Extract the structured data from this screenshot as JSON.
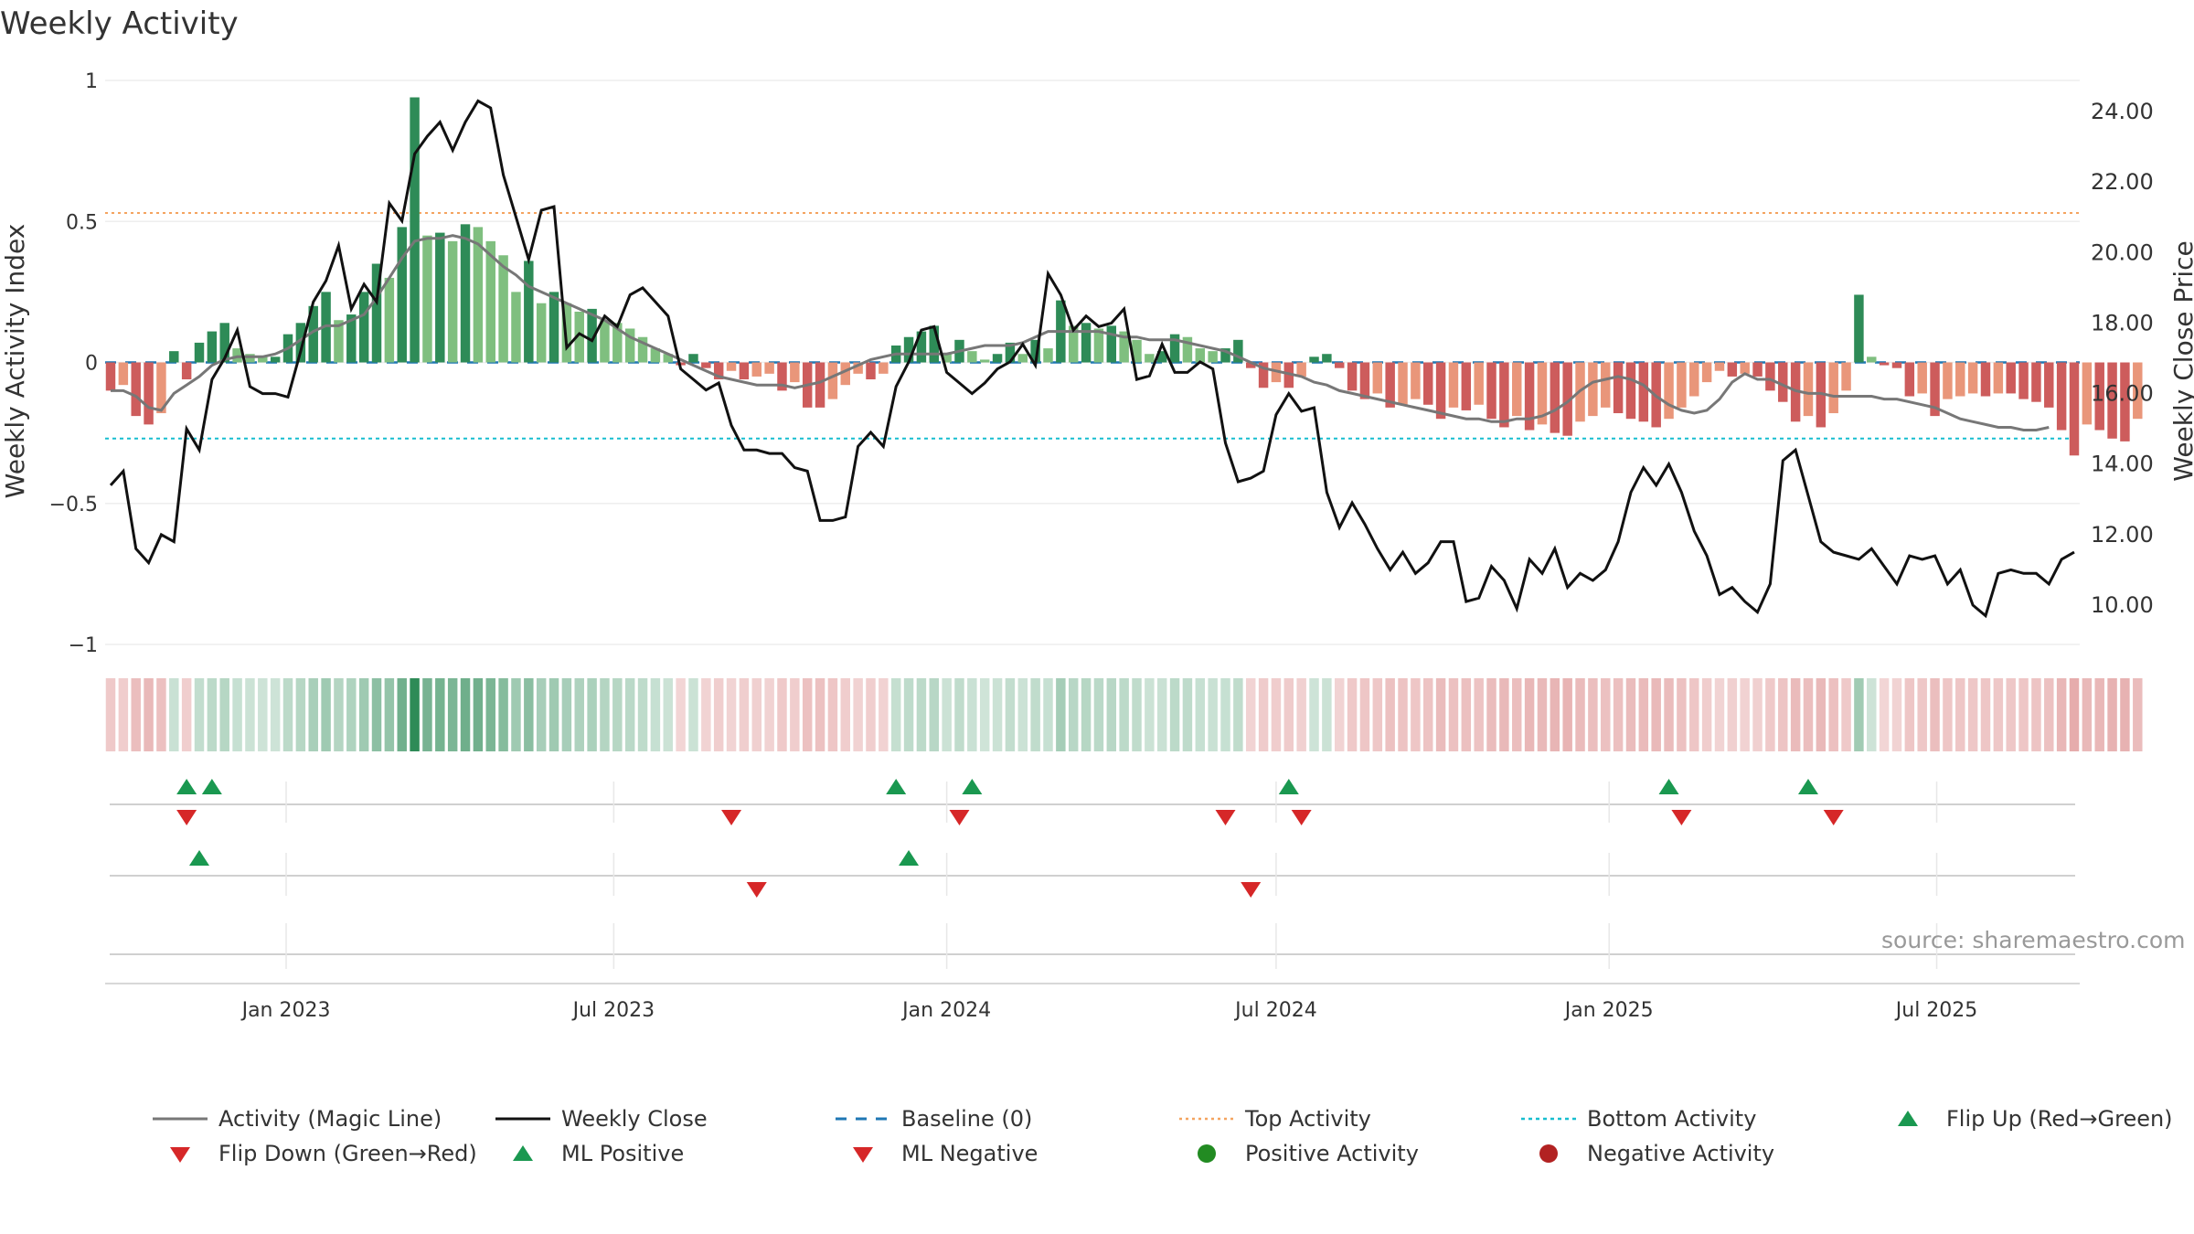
{
  "page_title": "Weekly Activity",
  "source_text": "source: sharemaestro.com",
  "colors": {
    "dark_green": "#2e8b57",
    "light_green": "#7fbf7f",
    "dark_red": "#cd5c5c",
    "light_red": "#e9967a",
    "magic_line": "#777777",
    "close_line": "#111111",
    "baseline": "#1f77b4",
    "top_activity": "#f4a460",
    "bottom_activity": "#17becf",
    "flip_up": "#1a9850",
    "flip_down": "#d62728"
  },
  "legend": [
    {
      "label": "Activity (Magic Line)",
      "icon": "solid-gray-line"
    },
    {
      "label": "Weekly Close",
      "icon": "solid-black-line"
    },
    {
      "label": "Baseline (0)",
      "icon": "dashed-blue-line"
    },
    {
      "label": "Top Activity",
      "icon": "dotted-orange-line"
    },
    {
      "label": "Bottom Activity",
      "icon": "dotted-cyan-line"
    },
    {
      "label": "Flip Up (Red→Green)",
      "icon": "green-triangle-up"
    },
    {
      "label": "Flip Down (Green→Red)",
      "icon": "red-triangle-down"
    },
    {
      "label": "ML Positive",
      "icon": "green-triangle-up"
    },
    {
      "label": "ML Negative",
      "icon": "red-triangle-down"
    },
    {
      "label": "Positive Activity",
      "icon": "green-dot"
    },
    {
      "label": "Negative Activity",
      "icon": "red-dot"
    }
  ],
  "chart_data": {
    "type": "bar",
    "title": "Weekly Activity",
    "ylabel": "Weekly Activity Index",
    "y2label": "Weekly Close Price",
    "ylim": [
      -1,
      1
    ],
    "y2lim": [
      9.0,
      25.0
    ],
    "yticks": [
      "1",
      "0.5",
      "0",
      "−0.5",
      "−1"
    ],
    "y2ticks": [
      "24.00",
      "22.00",
      "20.00",
      "18.00",
      "16.00",
      "14.00",
      "12.00",
      "10.00"
    ],
    "date_range": [
      "2022-09-26",
      "2025-09-15"
    ],
    "x_ticks": [
      {
        "label": "Jan 2023",
        "date": "2023-01-01"
      },
      {
        "label": "Jul 2023",
        "date": "2023-07-01"
      },
      {
        "label": "Jan 2024",
        "date": "2024-01-01"
      },
      {
        "label": "Jul 2024",
        "date": "2024-07-01"
      },
      {
        "label": "Jan 2025",
        "date": "2025-01-01"
      },
      {
        "label": "Jul 2025",
        "date": "2025-07-01"
      }
    ],
    "top_activity": 0.53,
    "bottom_activity": -0.27,
    "baseline": 0,
    "activity": [
      -0.1,
      -0.08,
      -0.19,
      -0.22,
      -0.18,
      0.04,
      -0.06,
      0.07,
      0.11,
      0.14,
      0.05,
      0.03,
      0.02,
      0.02,
      0.1,
      0.14,
      0.2,
      0.25,
      0.15,
      0.17,
      0.25,
      0.35,
      0.3,
      0.48,
      0.94,
      0.45,
      0.46,
      0.43,
      0.49,
      0.48,
      0.43,
      0.38,
      0.25,
      0.36,
      0.21,
      0.25,
      0.21,
      0.18,
      0.19,
      0.15,
      0.14,
      0.12,
      0.09,
      0.05,
      0.03,
      -0.01,
      0.03,
      -0.02,
      -0.06,
      -0.03,
      -0.06,
      -0.05,
      -0.04,
      -0.1,
      -0.07,
      -0.16,
      -0.16,
      -0.13,
      -0.08,
      -0.04,
      -0.06,
      -0.04,
      0.06,
      0.09,
      0.11,
      0.13,
      0.03,
      0.08,
      0.04,
      0.01,
      0.03,
      0.07,
      0.03,
      0.08,
      0.05,
      0.22,
      0.13,
      0.14,
      0.12,
      0.13,
      0.11,
      0.08,
      0.03,
      0.04,
      0.1,
      0.09,
      0.05,
      0.04,
      0.05,
      0.08,
      -0.02,
      -0.09,
      -0.07,
      -0.09,
      -0.05,
      0.02,
      0.03,
      -0.02,
      -0.1,
      -0.13,
      -0.11,
      -0.16,
      -0.15,
      -0.13,
      -0.15,
      -0.2,
      -0.16,
      -0.17,
      -0.15,
      -0.2,
      -0.23,
      -0.19,
      -0.24,
      -0.22,
      -0.25,
      -0.26,
      -0.21,
      -0.19,
      -0.16,
      -0.18,
      -0.2,
      -0.21,
      -0.23,
      -0.2,
      -0.16,
      -0.12,
      -0.07,
      -0.03,
      -0.05,
      -0.04,
      -0.05,
      -0.1,
      -0.14,
      -0.21,
      -0.19,
      -0.23,
      -0.18,
      -0.1,
      0.24,
      0.02,
      -0.01,
      -0.02,
      -0.12,
      -0.11,
      -0.19,
      -0.13,
      -0.12,
      -0.11,
      -0.12,
      -0.11,
      -0.11,
      -0.13,
      -0.14,
      -0.16,
      -0.24,
      -0.33,
      -0.22,
      -0.24,
      -0.27,
      -0.28,
      -0.2
    ],
    "magic_line": [
      -0.1,
      -0.1,
      -0.12,
      -0.16,
      -0.17,
      -0.11,
      -0.08,
      -0.05,
      -0.01,
      0.01,
      0.02,
      0.02,
      0.02,
      0.03,
      0.05,
      0.08,
      0.11,
      0.13,
      0.13,
      0.15,
      0.17,
      0.23,
      0.3,
      0.37,
      0.43,
      0.44,
      0.44,
      0.45,
      0.44,
      0.42,
      0.38,
      0.34,
      0.31,
      0.27,
      0.25,
      0.23,
      0.21,
      0.19,
      0.17,
      0.15,
      0.12,
      0.09,
      0.07,
      0.05,
      0.03,
      0.01,
      -0.01,
      -0.03,
      -0.05,
      -0.06,
      -0.07,
      -0.08,
      -0.08,
      -0.08,
      -0.09,
      -0.08,
      -0.07,
      -0.05,
      -0.03,
      -0.01,
      0.01,
      0.02,
      0.03,
      0.03,
      0.03,
      0.03,
      0.03,
      0.04,
      0.05,
      0.06,
      0.06,
      0.06,
      0.07,
      0.09,
      0.11,
      0.11,
      0.11,
      0.11,
      0.11,
      0.1,
      0.09,
      0.09,
      0.08,
      0.08,
      0.08,
      0.07,
      0.06,
      0.05,
      0.04,
      0.02,
      0.0,
      -0.02,
      -0.03,
      -0.04,
      -0.05,
      -0.07,
      -0.08,
      -0.1,
      -0.11,
      -0.12,
      -0.13,
      -0.14,
      -0.15,
      -0.16,
      -0.17,
      -0.18,
      -0.19,
      -0.2,
      -0.2,
      -0.21,
      -0.21,
      -0.2,
      -0.2,
      -0.19,
      -0.17,
      -0.14,
      -0.1,
      -0.07,
      -0.06,
      -0.05,
      -0.06,
      -0.08,
      -0.12,
      -0.15,
      -0.17,
      -0.18,
      -0.17,
      -0.13,
      -0.07,
      -0.04,
      -0.06,
      -0.06,
      -0.08,
      -0.1,
      -0.11,
      -0.11,
      -0.12,
      -0.12,
      -0.12,
      -0.12,
      -0.13,
      -0.13,
      -0.14,
      -0.15,
      -0.16,
      -0.18,
      -0.2,
      -0.21,
      -0.22,
      -0.23,
      -0.23,
      -0.24,
      -0.24,
      -0.23
    ],
    "close": [
      13.4,
      13.8,
      11.6,
      11.2,
      12.0,
      11.8,
      15.0,
      14.4,
      16.4,
      17.0,
      17.8,
      16.2,
      16.0,
      16.0,
      15.9,
      17.2,
      18.6,
      19.2,
      20.2,
      18.4,
      19.1,
      18.6,
      21.4,
      20.9,
      22.8,
      23.3,
      23.7,
      22.9,
      23.7,
      24.3,
      24.1,
      22.2,
      21.0,
      19.8,
      21.2,
      21.3,
      17.3,
      17.7,
      17.5,
      18.2,
      17.9,
      18.8,
      19.0,
      18.6,
      18.2,
      16.7,
      16.4,
      16.1,
      16.3,
      15.1,
      14.4,
      14.4,
      14.3,
      14.3,
      13.9,
      13.8,
      12.4,
      12.4,
      12.5,
      14.5,
      14.9,
      14.5,
      16.2,
      16.9,
      17.8,
      17.9,
      16.6,
      16.3,
      16.0,
      16.3,
      16.7,
      16.9,
      17.4,
      16.8,
      19.4,
      18.8,
      17.8,
      18.2,
      17.9,
      18.0,
      18.4,
      16.4,
      16.5,
      17.4,
      16.6,
      16.6,
      16.9,
      16.7,
      14.6,
      13.5,
      13.6,
      13.8,
      15.4,
      16.0,
      15.5,
      15.6,
      13.2,
      12.2,
      12.9,
      12.3,
      11.6,
      11.0,
      11.5,
      10.9,
      11.2,
      11.8,
      11.8,
      10.1,
      10.2,
      11.1,
      10.7,
      9.9,
      11.3,
      10.9,
      11.6,
      10.5,
      10.9,
      10.7,
      11.0,
      11.8,
      13.2,
      13.9,
      13.4,
      14.0,
      13.2,
      12.1,
      11.4,
      10.3,
      10.5,
      10.1,
      9.8,
      10.6,
      14.1,
      14.4,
      13.1,
      11.8,
      11.5,
      11.4,
      11.3,
      11.6,
      11.1,
      10.6,
      11.4,
      11.3,
      11.4,
      10.6,
      11.0,
      10.0,
      9.7,
      10.9,
      11.0,
      10.9,
      10.9,
      10.6,
      11.3,
      11.5
    ],
    "ml_positive": [
      "2022-11-14",
      "2023-12-11"
    ],
    "ml_negative": [
      "2023-09-18",
      "2024-06-17"
    ],
    "flip_up": [
      "2022-11-07",
      "2022-11-21",
      "2023-12-04",
      "2024-01-15",
      "2024-07-08",
      "2025-02-03",
      "2025-04-21"
    ],
    "flip_down": [
      "2022-11-07",
      "2023-09-04",
      "2024-01-08",
      "2024-06-03",
      "2024-07-15",
      "2025-02-10",
      "2025-05-05"
    ]
  }
}
